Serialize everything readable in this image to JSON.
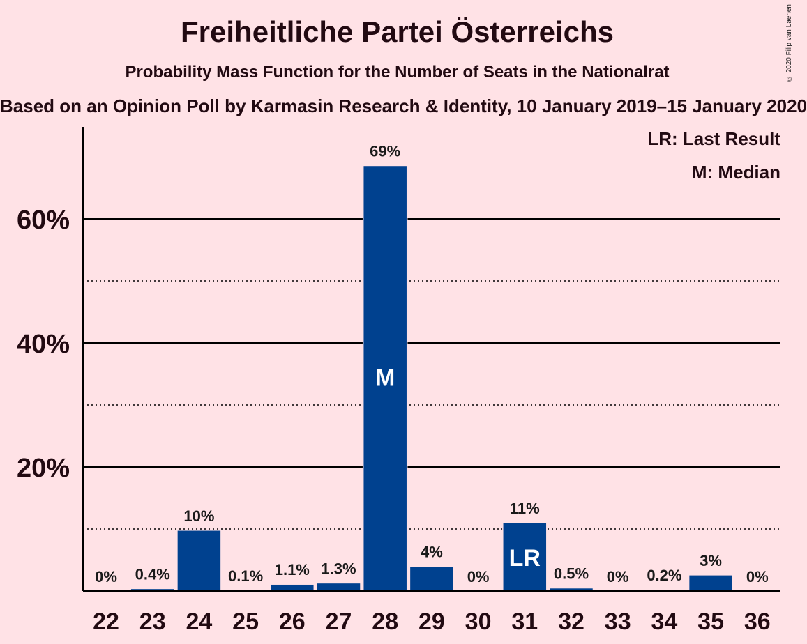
{
  "title": "Freiheitliche Partei Österreichs",
  "subtitle": "Probability Mass Function for the Number of Seats in the Nationalrat",
  "source": "Based on an Opinion Poll by Karmasin Research & Identity, 10 January 2019–15 January 2020",
  "copyright": "© 2020 Filip van Laenen",
  "legend": {
    "last_result": "LR: Last Result",
    "median": "M: Median"
  },
  "colors": {
    "background": "#FFE2E6",
    "bar": "#00418F",
    "grid": "#000000"
  },
  "chart_data": {
    "type": "bar",
    "categories": [
      "22",
      "23",
      "24",
      "25",
      "26",
      "27",
      "28",
      "29",
      "30",
      "31",
      "32",
      "33",
      "34",
      "35",
      "36"
    ],
    "values": [
      0,
      0.4,
      9.8,
      0.1,
      1.1,
      1.3,
      68.6,
      4.0,
      0,
      11.0,
      0.5,
      0,
      0.2,
      2.6,
      0
    ],
    "value_labels": [
      "0%",
      "0.4%",
      "10%",
      "0.1%",
      "1.1%",
      "1.3%",
      "69%",
      "4%",
      "0%",
      "11%",
      "0.5%",
      "0%",
      "0.2%",
      "3%",
      "0%"
    ],
    "bar_markers": {
      "28": "M",
      "31": "LR"
    },
    "yticks": [
      20,
      40,
      60
    ],
    "ytick_labels": [
      "20%",
      "40%",
      "60%"
    ],
    "minor_gridlines": [
      10,
      30,
      50
    ],
    "ylim": [
      0,
      75
    ],
    "grid": true,
    "legend_position": "top-right"
  }
}
